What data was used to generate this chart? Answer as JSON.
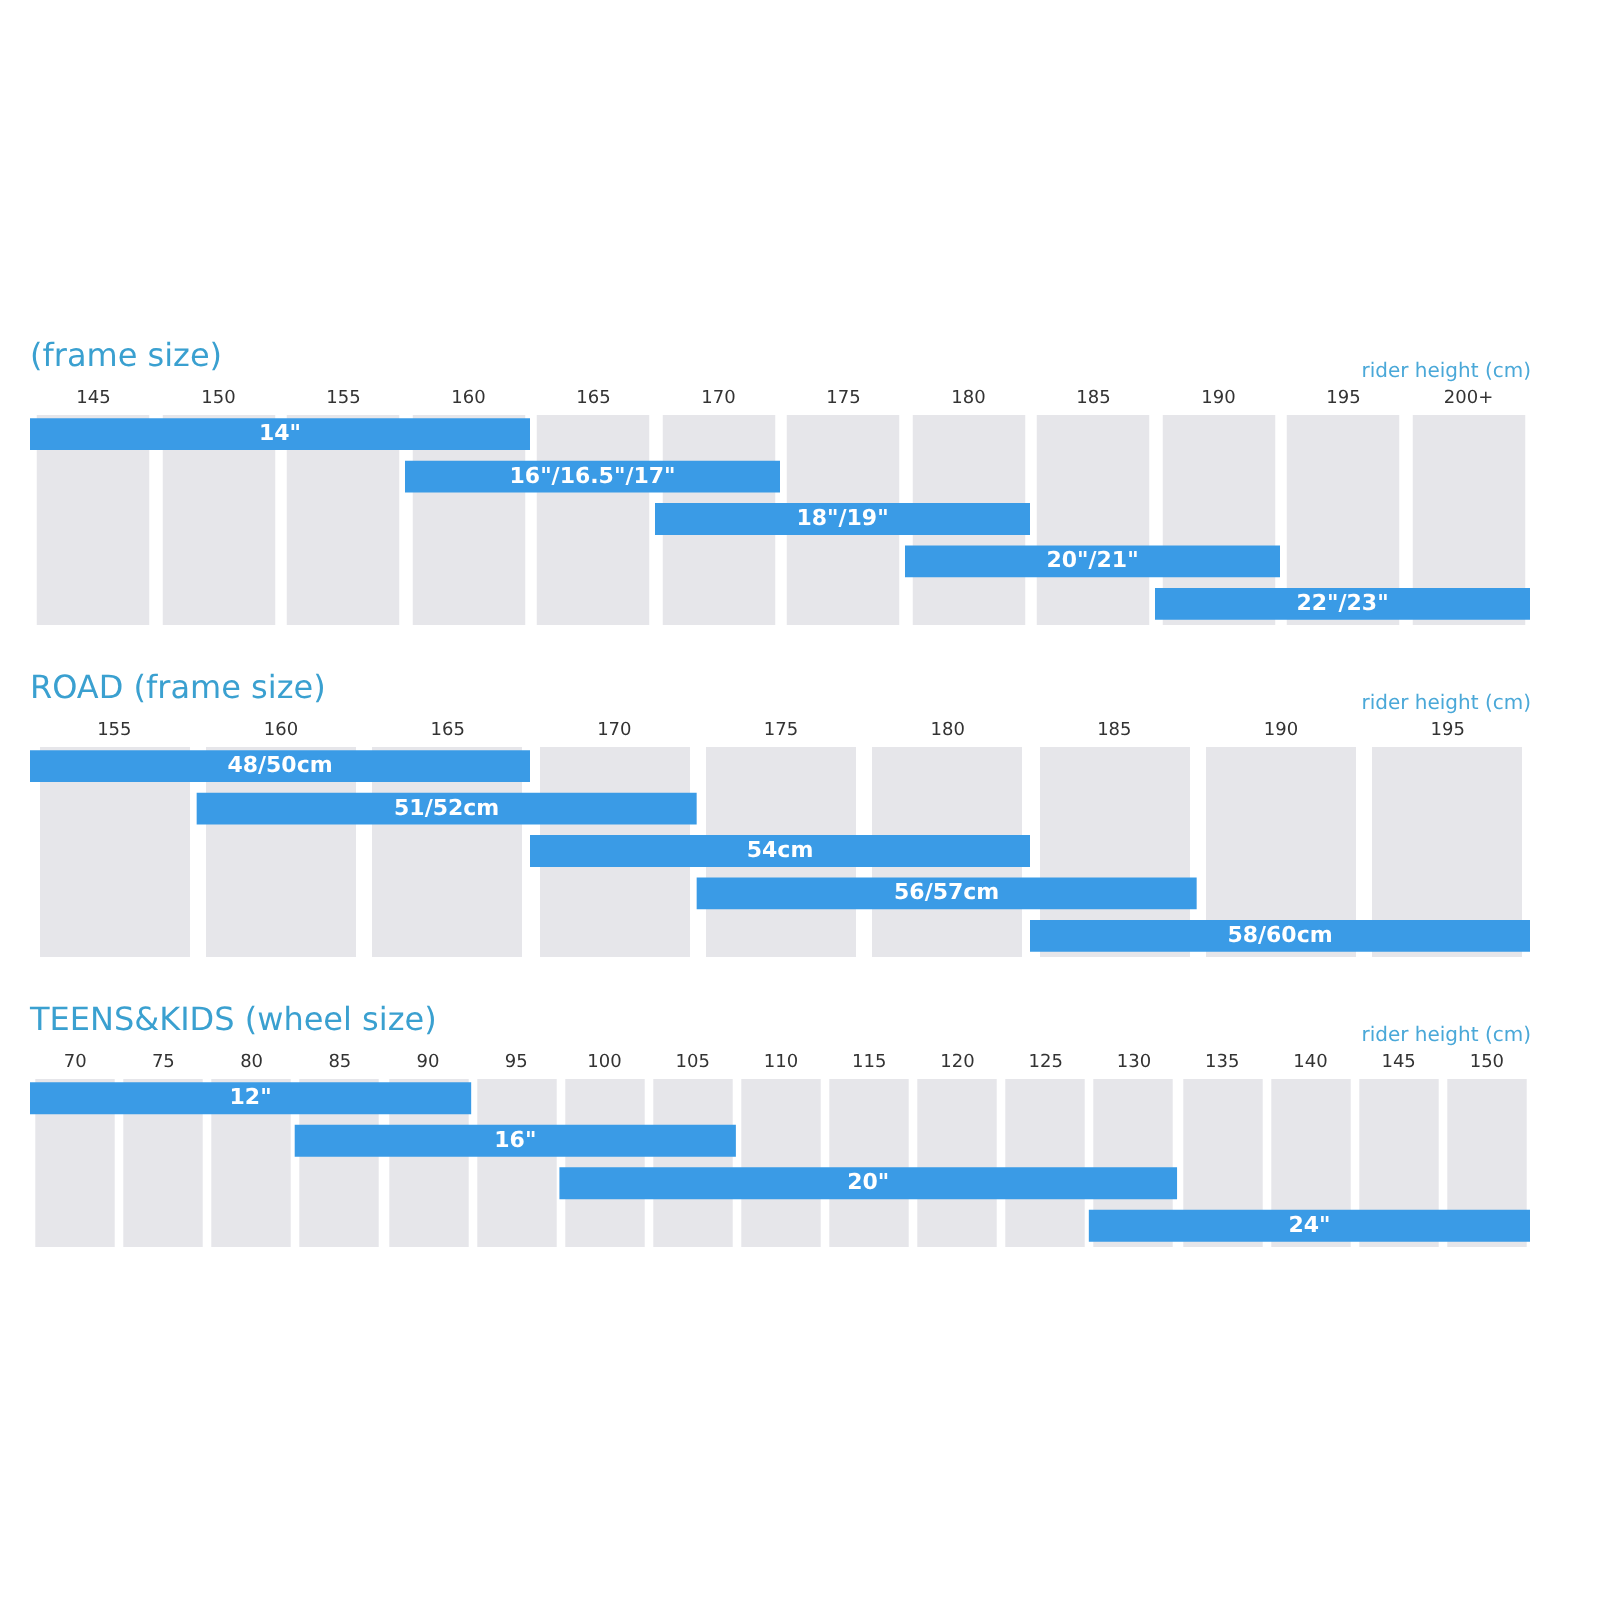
{
  "chart_data": [
    {
      "type": "bar",
      "orientation": "horizontal",
      "title": "(frame size)",
      "xlabel": "rider height (cm)",
      "categories": [
        "14\"",
        "16\"/16.5\"/17\"",
        "18\"/19\"",
        "20\"/21\"",
        "22\"/23\""
      ],
      "series": [
        {
          "color": "#3a9be6",
          "base": [
            142.5,
            157.5,
            167.5,
            177.5,
            187.5
          ],
          "values": [
            20,
            15,
            15,
            15,
            15
          ]
        }
      ],
      "xlim": [
        142.5,
        202.5
      ],
      "xticks": [
        145,
        150,
        155,
        160,
        165,
        170,
        175,
        180,
        185,
        190,
        195,
        {
          "value": 200,
          "label": "200+"
        }
      ],
      "grid": "x"
    },
    {
      "type": "bar",
      "orientation": "horizontal",
      "title": "ROAD (frame size)",
      "xlabel": "rider height (cm)",
      "categories": [
        "48/50cm",
        "51/52cm",
        "54cm",
        "56/57cm",
        "58/60cm"
      ],
      "series": [
        {
          "color": "#3a9be6",
          "base": [
            152.5,
            157.5,
            167.5,
            172.5,
            182.5
          ],
          "values": [
            15,
            15,
            15,
            15,
            15
          ]
        }
      ],
      "xlim": [
        152.5,
        197.5
      ],
      "xticks": [
        155,
        160,
        165,
        170,
        175,
        180,
        185,
        190,
        195
      ],
      "grid": "x"
    },
    {
      "type": "bar",
      "orientation": "horizontal",
      "title": "TEENS&KIDS (wheel size)",
      "xlabel": "rider height (cm)",
      "categories": [
        "12\"",
        "16\"",
        "20\"",
        "24\""
      ],
      "series": [
        {
          "color": "#3a9be6",
          "base": [
            67.5,
            82.5,
            97.5,
            127.5
          ],
          "values": [
            25,
            25,
            35,
            25
          ]
        }
      ],
      "xlim": [
        67.5,
        152.5
      ],
      "xticks": [
        70,
        75,
        80,
        85,
        90,
        95,
        100,
        105,
        110,
        115,
        120,
        125,
        130,
        135,
        140,
        145,
        150
      ],
      "grid": "x"
    }
  ]
}
